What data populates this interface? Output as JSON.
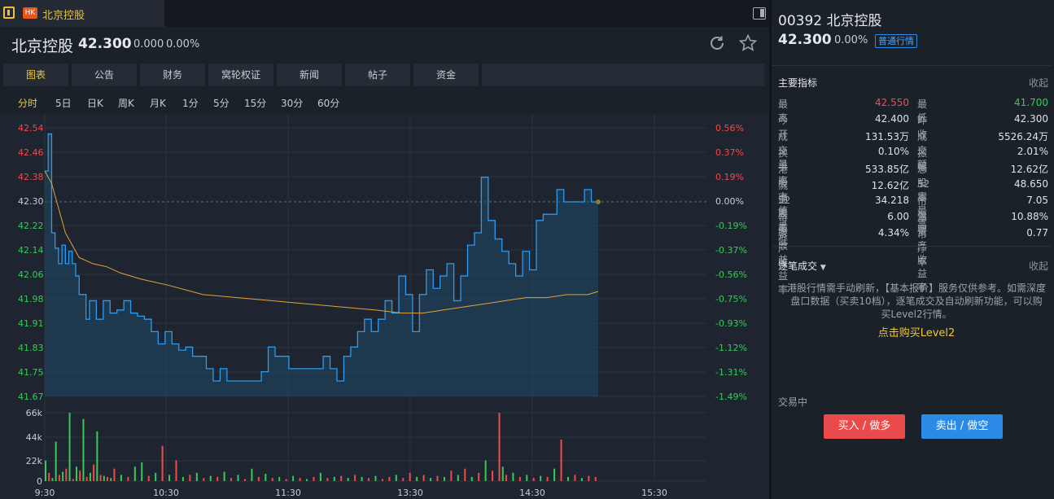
{
  "tab": {
    "badge": "HK",
    "title": "北京控股"
  },
  "header": {
    "name": "北京控股",
    "price": "42.300",
    "change": "0.000",
    "pct": "0.00%"
  },
  "nav_tabs": [
    "图表",
    "公告",
    "财务",
    "窝轮权证",
    "新闻",
    "帖子",
    "资金"
  ],
  "periods": [
    "分时",
    "5日",
    "日K",
    "周K",
    "月K",
    "1分",
    "5分",
    "15分",
    "30分",
    "60分"
  ],
  "chart_data": {
    "type": "line",
    "price_ticks": [
      "42.54",
      "42.46",
      "42.38",
      "42.30",
      "42.22",
      "42.14",
      "42.06",
      "41.98",
      "41.91",
      "41.83",
      "41.75",
      "41.67"
    ],
    "pct_ticks": [
      "0.56%",
      "0.37%",
      "0.19%",
      "0.00%",
      "-0.19%",
      "-0.37%",
      "-0.56%",
      "-0.75%",
      "-0.93%",
      "-1.12%",
      "-1.31%",
      "-1.49%"
    ],
    "volume_ticks": [
      "66k",
      "44k",
      "22k",
      "0"
    ],
    "time_ticks": [
      "9:30",
      "10:30",
      "11:30",
      "13:30",
      "14:30",
      "15:30"
    ],
    "prev_close": 42.3,
    "ylim": [
      41.67,
      42.54
    ],
    "volume_max": 66000,
    "price": [
      [
        0,
        42.4
      ],
      [
        1,
        42.52
      ],
      [
        2,
        42.2
      ],
      [
        3,
        42.15
      ],
      [
        4,
        42.1
      ],
      [
        5,
        42.16
      ],
      [
        6,
        42.1
      ],
      [
        7,
        42.14
      ],
      [
        8,
        42.1
      ],
      [
        9,
        42.06
      ],
      [
        10,
        42.0
      ],
      [
        12,
        41.92
      ],
      [
        13,
        41.98
      ],
      [
        15,
        41.92
      ],
      [
        17,
        41.98
      ],
      [
        19,
        41.94
      ],
      [
        21,
        41.95
      ],
      [
        23,
        41.98
      ],
      [
        25,
        41.94
      ],
      [
        27,
        41.93
      ],
      [
        29,
        41.92
      ],
      [
        31,
        41.88
      ],
      [
        33,
        41.84
      ],
      [
        35,
        41.88
      ],
      [
        37,
        41.84
      ],
      [
        39,
        41.82
      ],
      [
        41,
        41.83
      ],
      [
        43,
        41.8
      ],
      [
        45,
        41.8
      ],
      [
        47,
        41.76
      ],
      [
        49,
        41.72
      ],
      [
        51,
        41.76
      ],
      [
        53,
        41.72
      ],
      [
        55,
        41.72
      ],
      [
        57,
        41.72
      ],
      [
        59,
        41.72
      ],
      [
        61,
        41.72
      ],
      [
        63,
        41.75
      ],
      [
        65,
        41.83
      ],
      [
        67,
        41.8
      ],
      [
        69,
        41.8
      ],
      [
        71,
        41.76
      ],
      [
        73,
        41.76
      ],
      [
        75,
        41.76
      ],
      [
        77,
        41.76
      ],
      [
        79,
        41.76
      ],
      [
        81,
        41.8
      ],
      [
        83,
        41.76
      ],
      [
        85,
        41.72
      ],
      [
        87,
        41.8
      ],
      [
        89,
        41.83
      ],
      [
        91,
        41.88
      ],
      [
        93,
        41.92
      ],
      [
        95,
        41.88
      ],
      [
        97,
        41.92
      ],
      [
        99,
        41.98
      ],
      [
        101,
        41.94
      ],
      [
        103,
        42.06
      ],
      [
        105,
        42.0
      ],
      [
        107,
        41.88
      ],
      [
        109,
        42.0
      ],
      [
        111,
        42.08
      ],
      [
        113,
        42.02
      ],
      [
        115,
        42.06
      ],
      [
        117,
        42.1
      ],
      [
        119,
        41.98
      ],
      [
        121,
        42.06
      ],
      [
        123,
        42.16
      ],
      [
        125,
        42.2
      ],
      [
        127,
        42.38
      ],
      [
        129,
        42.24
      ],
      [
        131,
        42.18
      ],
      [
        133,
        42.14
      ],
      [
        135,
        42.1
      ],
      [
        137,
        42.06
      ],
      [
        139,
        42.14
      ],
      [
        141,
        42.08
      ],
      [
        143,
        42.24
      ],
      [
        145,
        42.26
      ],
      [
        147,
        42.26
      ],
      [
        149,
        42.34
      ],
      [
        151,
        42.3
      ],
      [
        153,
        42.3
      ],
      [
        155,
        42.3
      ],
      [
        157,
        42.34
      ],
      [
        159,
        42.3
      ],
      [
        161,
        42.3
      ]
    ],
    "avg": [
      [
        0,
        42.4
      ],
      [
        2,
        42.36
      ],
      [
        4,
        42.28
      ],
      [
        6,
        42.2
      ],
      [
        8,
        42.16
      ],
      [
        10,
        42.12
      ],
      [
        14,
        42.1
      ],
      [
        18,
        42.09
      ],
      [
        22,
        42.07
      ],
      [
        28,
        42.05
      ],
      [
        36,
        42.03
      ],
      [
        46,
        42.0
      ],
      [
        56,
        41.99
      ],
      [
        66,
        41.98
      ],
      [
        76,
        41.97
      ],
      [
        86,
        41.96
      ],
      [
        96,
        41.95
      ],
      [
        104,
        41.94
      ],
      [
        110,
        41.94
      ],
      [
        116,
        41.95
      ],
      [
        122,
        41.96
      ],
      [
        128,
        41.97
      ],
      [
        134,
        41.98
      ],
      [
        140,
        41.99
      ],
      [
        146,
        41.99
      ],
      [
        152,
        42.0
      ],
      [
        158,
        42.0
      ],
      [
        161,
        42.01
      ]
    ],
    "volumes": [
      [
        0,
        20000,
        "g"
      ],
      [
        1,
        8000,
        "r"
      ],
      [
        2,
        3000,
        "g"
      ],
      [
        3,
        38000,
        "g"
      ],
      [
        4,
        6000,
        "r"
      ],
      [
        5,
        9000,
        "g"
      ],
      [
        6,
        12000,
        "r"
      ],
      [
        7,
        66000,
        "g"
      ],
      [
        8,
        2000,
        "r"
      ],
      [
        9,
        14000,
        "g"
      ],
      [
        10,
        10000,
        "r"
      ],
      [
        11,
        60000,
        "g"
      ],
      [
        12,
        4000,
        "r"
      ],
      [
        13,
        8000,
        "g"
      ],
      [
        14,
        16000,
        "r"
      ],
      [
        15,
        48000,
        "g"
      ],
      [
        16,
        6000,
        "r"
      ],
      [
        17,
        5000,
        "g"
      ],
      [
        18,
        4000,
        "r"
      ],
      [
        19,
        3000,
        "g"
      ],
      [
        20,
        12000,
        "r"
      ],
      [
        22,
        6000,
        "g"
      ],
      [
        24,
        4000,
        "r"
      ],
      [
        26,
        14000,
        "g"
      ],
      [
        28,
        18000,
        "g"
      ],
      [
        30,
        5000,
        "r"
      ],
      [
        32,
        8000,
        "g"
      ],
      [
        34,
        34000,
        "r"
      ],
      [
        36,
        6000,
        "g"
      ],
      [
        38,
        20000,
        "r"
      ],
      [
        40,
        4000,
        "g"
      ],
      [
        42,
        6000,
        "r"
      ],
      [
        44,
        8000,
        "g"
      ],
      [
        46,
        3000,
        "r"
      ],
      [
        48,
        5000,
        "g"
      ],
      [
        50,
        4000,
        "r"
      ],
      [
        52,
        9000,
        "g"
      ],
      [
        54,
        3000,
        "r"
      ],
      [
        56,
        6000,
        "g"
      ],
      [
        58,
        2000,
        "r"
      ],
      [
        60,
        12000,
        "g"
      ],
      [
        62,
        4000,
        "r"
      ],
      [
        64,
        7000,
        "g"
      ],
      [
        66,
        3000,
        "r"
      ],
      [
        68,
        4000,
        "g"
      ],
      [
        70,
        2000,
        "r"
      ],
      [
        72,
        5000,
        "g"
      ],
      [
        74,
        3000,
        "r"
      ],
      [
        76,
        2000,
        "g"
      ],
      [
        78,
        4000,
        "r"
      ],
      [
        80,
        8000,
        "g"
      ],
      [
        82,
        3000,
        "r"
      ],
      [
        84,
        4000,
        "g"
      ],
      [
        86,
        5000,
        "r"
      ],
      [
        88,
        3000,
        "g"
      ],
      [
        90,
        6000,
        "r"
      ],
      [
        92,
        4000,
        "g"
      ],
      [
        94,
        3000,
        "r"
      ],
      [
        96,
        5000,
        "g"
      ],
      [
        98,
        2000,
        "r"
      ],
      [
        100,
        4000,
        "r"
      ],
      [
        102,
        6000,
        "g"
      ],
      [
        104,
        3000,
        "r"
      ],
      [
        106,
        8000,
        "r"
      ],
      [
        108,
        4000,
        "g"
      ],
      [
        110,
        6000,
        "r"
      ],
      [
        112,
        3000,
        "g"
      ],
      [
        114,
        5000,
        "r"
      ],
      [
        116,
        4000,
        "g"
      ],
      [
        118,
        10000,
        "r"
      ],
      [
        120,
        6000,
        "g"
      ],
      [
        122,
        12000,
        "r"
      ],
      [
        124,
        4000,
        "g"
      ],
      [
        126,
        8000,
        "r"
      ],
      [
        128,
        20000,
        "g"
      ],
      [
        130,
        10000,
        "r"
      ],
      [
        132,
        66000,
        "r"
      ],
      [
        133,
        14000,
        "g"
      ],
      [
        134,
        6000,
        "r"
      ],
      [
        136,
        8000,
        "g"
      ],
      [
        138,
        4000,
        "r"
      ],
      [
        140,
        6000,
        "g"
      ],
      [
        142,
        3000,
        "r"
      ],
      [
        144,
        5000,
        "g"
      ],
      [
        146,
        4000,
        "r"
      ],
      [
        148,
        12000,
        "g"
      ],
      [
        150,
        40000,
        "r"
      ],
      [
        152,
        4000,
        "g"
      ],
      [
        154,
        6000,
        "r"
      ],
      [
        156,
        3000,
        "g"
      ],
      [
        158,
        5000,
        "r"
      ],
      [
        160,
        4000,
        "r"
      ]
    ],
    "grid": true
  },
  "right_panel": {
    "code": "00392 北京控股",
    "price": "42.300",
    "pct": "0.00%",
    "badge": "普通行情",
    "metrics_title": "主要指标",
    "fold": "收起",
    "metrics": [
      {
        "l1": "最高",
        "v1": "42.550",
        "c1": "red",
        "l2": "最低",
        "v2": "41.700",
        "c2": "green"
      },
      {
        "l1": "今开",
        "v1": "42.400",
        "c1": "",
        "l2": "昨收",
        "v2": "42.300",
        "c2": ""
      },
      {
        "l1": "成交量",
        "v1": "131.53万",
        "c1": "",
        "l2": "成交额",
        "v2": "5526.24万",
        "c2": ""
      },
      {
        "l1": "换手率",
        "v1": "0.10%",
        "c1": "",
        "l2": "振幅",
        "v2": "2.01%",
        "c2": ""
      },
      {
        "l1": "港股市值",
        "v1": "533.85亿",
        "c1": "",
        "l2": "总股本",
        "v2": "12.62亿",
        "c2": ""
      },
      {
        "l1": "流通股本",
        "v1": "12.62亿",
        "c1": "",
        "l2": "52周最高",
        "v2": "48.650",
        "c2": ""
      },
      {
        "l1": "52周最低",
        "v1": "34.218",
        "c1": "",
        "l2": "市盈率",
        "v2": "7.05",
        "c2": ""
      },
      {
        "l1": "每股收益",
        "v1": "6.00",
        "c1": "",
        "l2": "净资产收益率",
        "v2": "10.88%",
        "c2": ""
      },
      {
        "l1": "资产收益率",
        "v1": "4.34%",
        "c1": "",
        "l2": "市净率",
        "v2": "0.77",
        "c2": ""
      }
    ],
    "trades_title": "逐笔成交",
    "trades_fold": "收起",
    "notice": "港股行情需手动刷新，【基本报价】服务仅供参考。如需深度盘口数据（买卖10档），逐笔成交及自动刷新功能，可以购买Level2行情。",
    "level2": "点击购买Level2",
    "status": "交易中",
    "buy": "买入 / 做多",
    "sell": "卖出 / 做空"
  },
  "colors": {
    "up": "#f04b4b",
    "down": "#3ac75b",
    "line": "#2a9bf0",
    "avg": "#e3a33a",
    "accent": "#f0c53a"
  }
}
